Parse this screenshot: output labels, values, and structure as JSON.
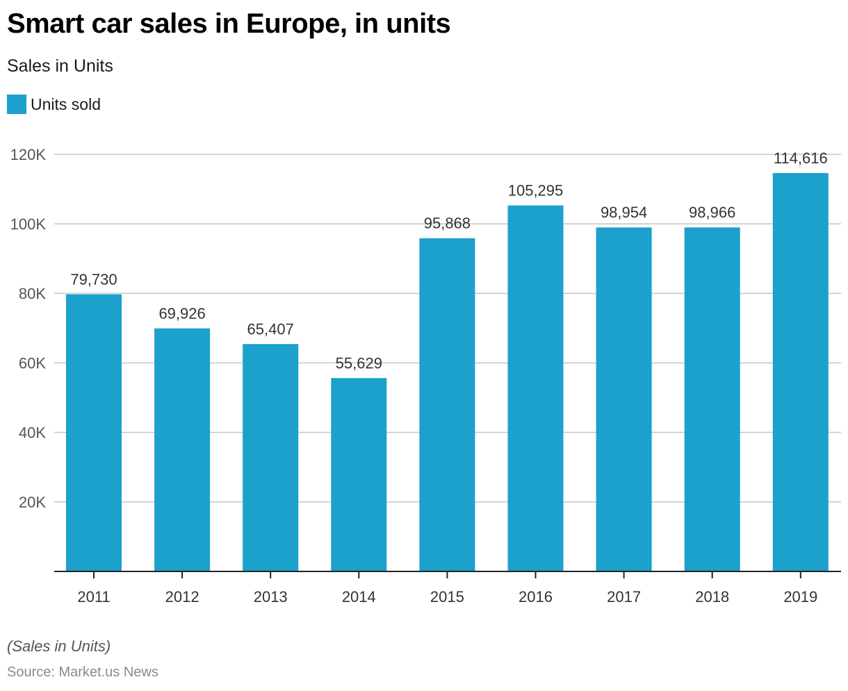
{
  "header": {
    "title": "Smart car sales in Europe, in units",
    "subtitle": "Sales in Units"
  },
  "legend": {
    "label": "Units sold",
    "color": "#1ba1cc"
  },
  "footer": {
    "note": "(Sales in Units)",
    "source": "Source: Market.us News"
  },
  "chart_data": {
    "type": "bar",
    "title": "Smart car sales in Europe, in units",
    "subtitle": "Sales in Units",
    "xlabel": "",
    "ylabel": "",
    "categories": [
      "2011",
      "2012",
      "2013",
      "2014",
      "2015",
      "2016",
      "2017",
      "2018",
      "2019"
    ],
    "series": [
      {
        "name": "Units sold",
        "color": "#1ba1cc",
        "values": [
          79730,
          69926,
          65407,
          55629,
          95868,
          105295,
          98954,
          98966,
          114616
        ],
        "labels": [
          "79,730",
          "69,926",
          "65,407",
          "55,629",
          "95,868",
          "105,295",
          "98,954",
          "98,966",
          "114,616"
        ]
      }
    ],
    "ylim": [
      0,
      120000
    ],
    "yticks": [
      20000,
      40000,
      60000,
      80000,
      100000,
      120000
    ],
    "ytick_labels": [
      "20K",
      "40K",
      "60K",
      "80K",
      "100K",
      "120K"
    ],
    "grid": true,
    "legend_position": "top-left"
  }
}
